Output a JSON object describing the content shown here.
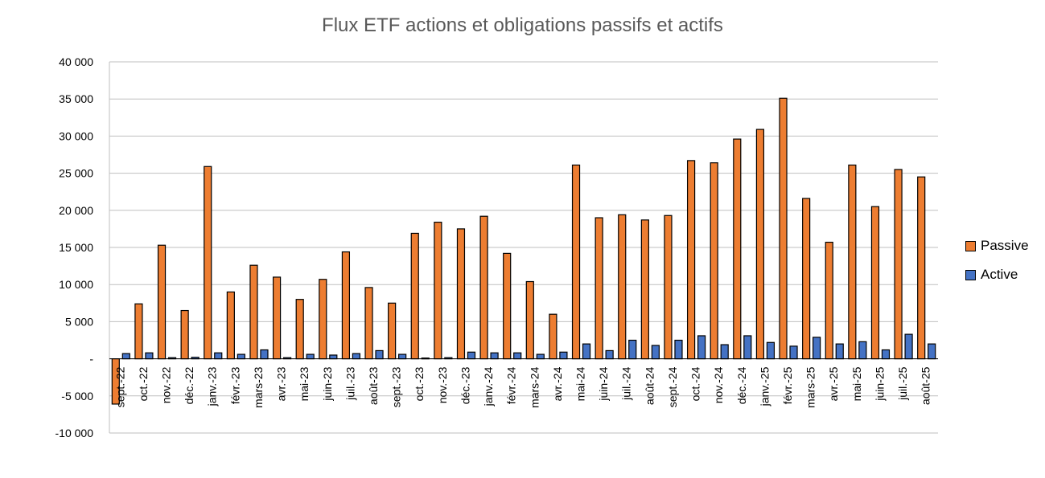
{
  "chart_data": {
    "type": "bar",
    "title": "Flux ETF actions et obligations passifs et actifs",
    "xlabel": "",
    "ylabel": "",
    "ylim": [
      -10000,
      40000
    ],
    "yticks": [
      {
        "value": 40000,
        "label": "40 000"
      },
      {
        "value": 35000,
        "label": "35 000"
      },
      {
        "value": 30000,
        "label": "30 000"
      },
      {
        "value": 25000,
        "label": "25 000"
      },
      {
        "value": 20000,
        "label": "20 000"
      },
      {
        "value": 15000,
        "label": "15 000"
      },
      {
        "value": 10000,
        "label": "10 000"
      },
      {
        "value": 5000,
        "label": "5 000"
      },
      {
        "value": 0,
        "label": "-"
      },
      {
        "value": -5000,
        "label": "-5 000"
      },
      {
        "value": -10000,
        "label": "-10 000"
      }
    ],
    "grid": true,
    "legend_position": "right",
    "categories": [
      "sept.-22",
      "oct.-22",
      "nov.-22",
      "déc.-22",
      "janv.-23",
      "févr.-23",
      "mars-23",
      "avr.-23",
      "mai-23",
      "juin-23",
      "juil.-23",
      "août-23",
      "sept.-23",
      "oct.-23",
      "nov.-23",
      "déc.-23",
      "janv.-24",
      "févr.-24",
      "mars-24",
      "avr.-24",
      "mai-24",
      "juin-24",
      "juil.-24",
      "août-24",
      "sept.-24",
      "oct.-24",
      "nov.-24",
      "déc.-24",
      "janv.-25",
      "févr.-25",
      "mars-25",
      "avr.-25",
      "mai-25",
      "juin-25",
      "juil.-25",
      "août-25"
    ],
    "series": [
      {
        "name": "Passive",
        "color": "#ED7D31",
        "values": [
          -6100,
          7400,
          15300,
          6500,
          25900,
          9000,
          12600,
          11000,
          8000,
          10700,
          14400,
          9600,
          7500,
          16900,
          18400,
          17500,
          19200,
          14200,
          10400,
          6000,
          26100,
          19000,
          19400,
          18700,
          19300,
          26700,
          26400,
          29600,
          30900,
          35100,
          21600,
          15700,
          26100,
          20500,
          25500,
          24500
        ]
      },
      {
        "name": "Active",
        "color": "#4472C4",
        "values": [
          700,
          800,
          150,
          200,
          800,
          600,
          1200,
          150,
          600,
          500,
          700,
          1100,
          600,
          100,
          150,
          900,
          800,
          800,
          600,
          900,
          2000,
          1100,
          2500,
          1800,
          2500,
          3100,
          1900,
          3100,
          2200,
          1700,
          2900,
          2000,
          2300,
          1200,
          3300,
          2000
        ]
      }
    ]
  }
}
